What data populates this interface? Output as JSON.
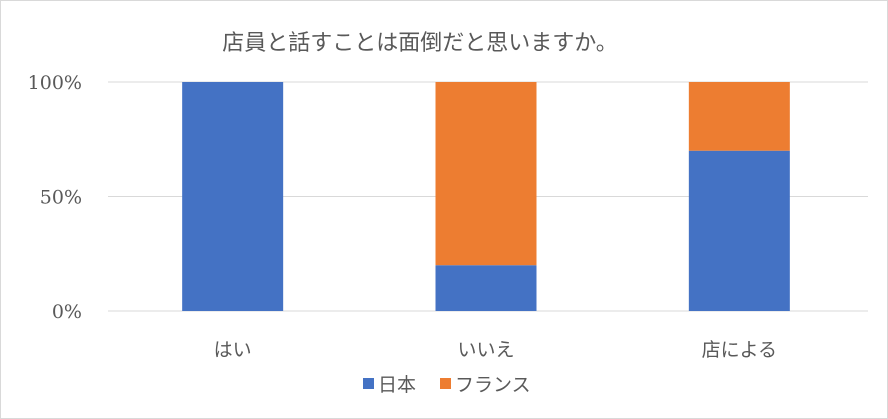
{
  "chart_data": {
    "type": "bar",
    "stacked": true,
    "percent_stacked": true,
    "title": "店員と話すことは面倒だと思いますか。",
    "categories": [
      "はい",
      "いいえ",
      "店による"
    ],
    "series": [
      {
        "name": "日本",
        "color": "#4472c4",
        "values": [
          100,
          20,
          70
        ]
      },
      {
        "name": "フランス",
        "color": "#ed7d31",
        "values": [
          0,
          80,
          30
        ]
      }
    ],
    "y_ticks": [
      "0%",
      "50%",
      "100%"
    ],
    "ylim": [
      0,
      100
    ],
    "grid": true,
    "legend_position": "bottom"
  }
}
